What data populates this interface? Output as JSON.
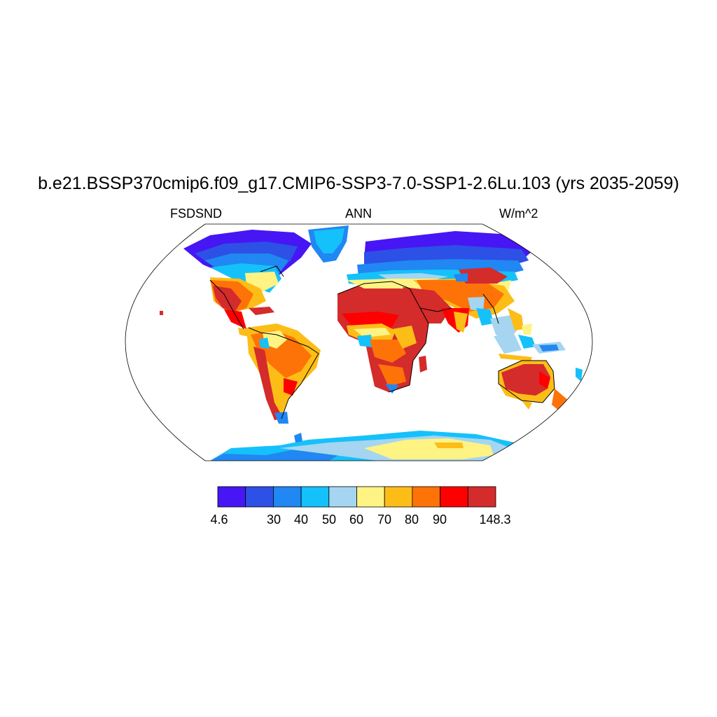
{
  "title": "b.e21.BSSP370cmip6.f09_g17.CMIP6-SSP3-7.0-SSP1-2.6Lu.103 (yrs 2035-2059)",
  "subtitle_left": "FSDSND",
  "subtitle_center": "ANN",
  "subtitle_right": "W/m^2",
  "projection": "robinson",
  "colorbar": {
    "colors": [
      "#4616f4",
      "#2d50e6",
      "#2187f2",
      "#15c1fb",
      "#a5d5f0",
      "#fef383",
      "#fdbd17",
      "#fe7308",
      "#fe0000",
      "#d42b2b"
    ],
    "labels": [
      "4.6",
      "30",
      "40",
      "50",
      "60",
      "70",
      "80",
      "90",
      "148.3"
    ]
  }
}
